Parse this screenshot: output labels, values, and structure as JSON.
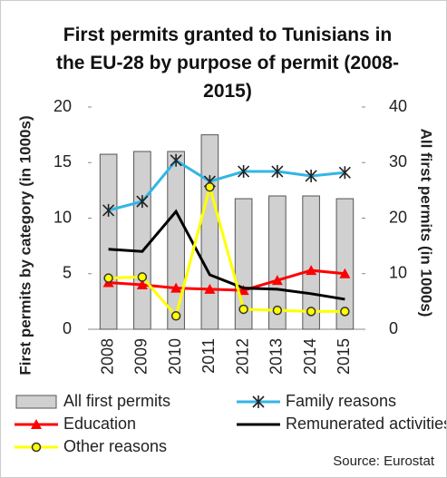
{
  "chart_data": {
    "type": "bar-line",
    "title": "First permits granted to Tunisians in the EU-28 by purpose of permit (2008-2015)",
    "y_label": "First permits by category (in 1000s)",
    "y2_label": "All first permits (in 1000s)",
    "source": "Source: Eurostat",
    "categories": [
      "2008",
      "2009",
      "2010",
      "2011",
      "2012",
      "2013",
      "2014",
      "2015"
    ],
    "ylim": [
      0,
      20
    ],
    "yticks": [
      0,
      5,
      10,
      15,
      20
    ],
    "y2lim": [
      0,
      40
    ],
    "y2ticks": [
      0,
      10,
      20,
      30,
      40
    ],
    "series": [
      {
        "name": "All first permits",
        "type": "bar",
        "axis": "y2",
        "color": "#d0d0d0",
        "values": [
          31.5,
          32,
          32,
          35,
          23.5,
          24,
          24,
          23.5
        ]
      },
      {
        "name": "Family reasons",
        "type": "line",
        "marker": "asterisk",
        "color": "#33b5e5",
        "values": [
          10.7,
          11.5,
          15.2,
          13.3,
          14.2,
          14.2,
          13.8,
          14.1
        ]
      },
      {
        "name": "Education",
        "type": "line",
        "marker": "triangle",
        "color": "#ff0000",
        "values": [
          4.2,
          4.0,
          3.7,
          3.6,
          3.5,
          4.4,
          5.3,
          5.0
        ]
      },
      {
        "name": "Remunerated activities",
        "type": "line",
        "marker": "none",
        "color": "#000000",
        "values": [
          7.2,
          7.0,
          10.6,
          4.9,
          3.7,
          3.6,
          3.2,
          2.7
        ]
      },
      {
        "name": "Other reasons",
        "type": "line",
        "marker": "circle",
        "color": "#ffff00",
        "values": [
          4.6,
          4.7,
          1.2,
          12.8,
          1.8,
          1.7,
          1.6,
          1.6
        ]
      }
    ]
  }
}
